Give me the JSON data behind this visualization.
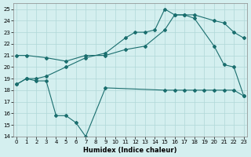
{
  "xlabel": "Humidex (Indice chaleur)",
  "background_color": "#d4efef",
  "grid_color": "#b0d8d8",
  "line_color": "#1a6e6e",
  "xlim": [
    -0.3,
    23.3
  ],
  "ylim": [
    14,
    25.5
  ],
  "xticks": [
    0,
    1,
    2,
    3,
    4,
    5,
    6,
    7,
    8,
    9,
    10,
    11,
    12,
    13,
    14,
    15,
    16,
    17,
    18,
    19,
    20,
    21,
    22,
    23
  ],
  "yticks": [
    14,
    15,
    16,
    17,
    18,
    19,
    20,
    21,
    22,
    23,
    24,
    25
  ],
  "line1_x": [
    0,
    1,
    3,
    5,
    7,
    9,
    11,
    13,
    15,
    16,
    17,
    18,
    20,
    21,
    22,
    23
  ],
  "line1_y": [
    21.0,
    21.0,
    20.8,
    20.5,
    21.0,
    21.0,
    21.5,
    21.8,
    23.2,
    24.5,
    24.5,
    24.5,
    24.0,
    23.8,
    23.0,
    22.5
  ],
  "line2_x": [
    0,
    1,
    2,
    3,
    5,
    7,
    9,
    11,
    12,
    13,
    14,
    15,
    16,
    17,
    18,
    20,
    21,
    22,
    23
  ],
  "line2_y": [
    18.5,
    19.0,
    19.0,
    19.2,
    20.0,
    20.8,
    21.2,
    22.5,
    23.0,
    23.0,
    23.2,
    25.0,
    24.5,
    24.5,
    24.2,
    21.8,
    20.2,
    20.0,
    17.5
  ],
  "line3_x": [
    0,
    1,
    2,
    3,
    4,
    5,
    6,
    7,
    9,
    15,
    16,
    17,
    18,
    19,
    20,
    21,
    22,
    23
  ],
  "line3_y": [
    18.5,
    19.0,
    18.8,
    18.8,
    15.8,
    15.8,
    15.2,
    14.0,
    18.2,
    18.0,
    18.0,
    18.0,
    18.0,
    18.0,
    18.0,
    18.0,
    18.0,
    17.5
  ]
}
